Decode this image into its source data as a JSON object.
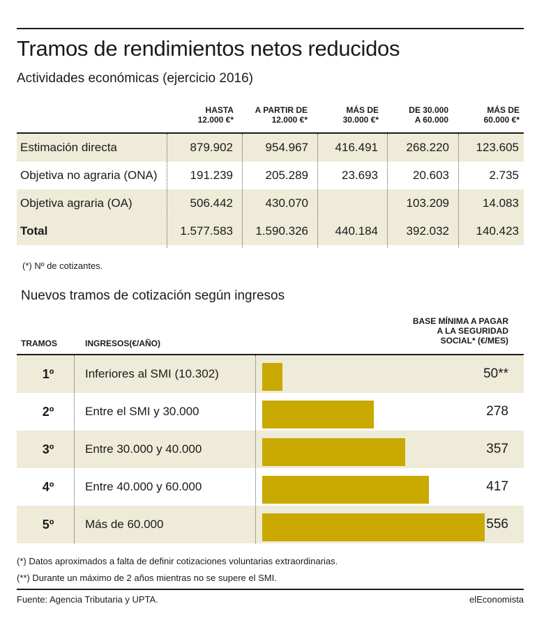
{
  "title": "Tramos de rendimientos netos reducidos",
  "subtitle": "Actividades económicas (ejercicio 2016)",
  "table1": {
    "headers": [
      [
        "HASTA",
        "12.000 €*"
      ],
      [
        "A PARTIR DE",
        "12.000 €*"
      ],
      [
        "MÁS DE",
        "30.000 €*"
      ],
      [
        "DE 30.000",
        "A 60.000"
      ],
      [
        "MÁS DE",
        "60.000 €*"
      ]
    ],
    "rows": [
      {
        "label": "Estimación directa",
        "values": [
          "879.902",
          "954.967",
          "416.491",
          "268.220",
          "123.605"
        ]
      },
      {
        "label": "Objetiva no agraria (ONA)",
        "values": [
          "191.239",
          "205.289",
          "23.693",
          "20.603",
          "2.735"
        ]
      },
      {
        "label": "Objetiva agraria (OA)",
        "values": [
          "506.442",
          "430.070",
          "",
          "103.209",
          "14.083"
        ]
      },
      {
        "label": "Total",
        "values": [
          "1.577.583",
          "1.590.326",
          "440.184",
          "392.032",
          "140.423"
        ]
      }
    ],
    "note": "(*) Nº de cotizantes."
  },
  "section2_title": "Nuevos tramos de cotización según ingresos",
  "table2": {
    "header_tramos": "TRAMOS",
    "header_ingresos": "INGRESOS(€/AÑO)",
    "header_base": [
      "BASE MÍNIMA A PAGAR",
      "A LA SEGURIDAD",
      "SOCIAL* (€/MES)"
    ]
  },
  "chart_data": {
    "type": "bar",
    "orientation": "horizontal",
    "categories": [
      "1º",
      "2º",
      "3º",
      "4º",
      "5º"
    ],
    "ingresos": [
      "Inferiores al SMI  (10.302)",
      "Entre el SMI y 30.000",
      "Entre 30.000 y 40.000",
      "Entre 40.000 y 60.000",
      "Más de 60.000"
    ],
    "values": [
      50,
      278,
      357,
      417,
      556
    ],
    "value_labels": [
      "50**",
      "278",
      "357",
      "417",
      "556"
    ],
    "xlim": [
      0,
      556
    ],
    "bar_color": "#c9a800"
  },
  "notes": [
    "(*) Datos aproximados a falta de definir cotizaciones voluntarias extraordinarias.",
    "(**) Durante un máximo de 2 años mientras no se supere el SMI."
  ],
  "source": "Fuente: Agencia Tributaria y UPTA.",
  "brand": "elEconomista"
}
